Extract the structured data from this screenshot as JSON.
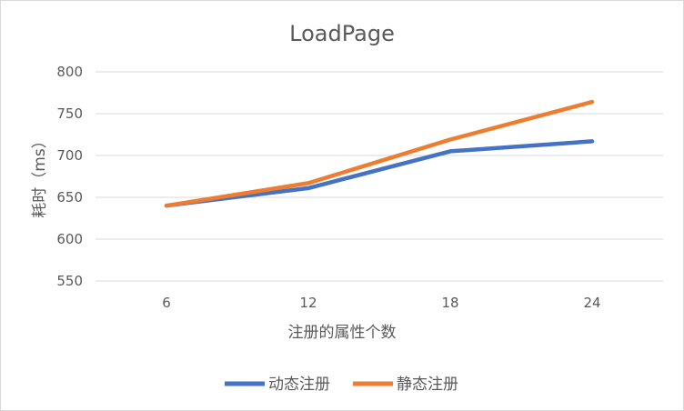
{
  "chart_data": {
    "type": "line",
    "title": "LoadPage",
    "xlabel": "注册的属性个数",
    "ylabel": "耗时（ms）",
    "categories": [
      "6",
      "12",
      "18",
      "24"
    ],
    "series": [
      {
        "name": "动态注册",
        "values": [
          640,
          661,
          705,
          717
        ],
        "color": "#4472C4"
      },
      {
        "name": "静态注册",
        "values": [
          640,
          667,
          719,
          764
        ],
        "color": "#ED7D31"
      }
    ],
    "ylim": [
      550,
      800
    ],
    "yticks": [
      "550",
      "600",
      "650",
      "700",
      "750",
      "800"
    ],
    "grid": true,
    "legend_position": "bottom"
  }
}
